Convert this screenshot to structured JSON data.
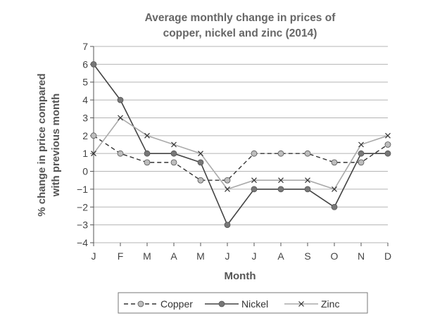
{
  "chart_data": {
    "type": "line",
    "title_lines": [
      "Average monthly change in prices of",
      "copper, nickel and zinc (2014)"
    ],
    "xlabel": "Month",
    "ylabel_lines": [
      "% change in price compared",
      "with previous month"
    ],
    "categories": [
      "J",
      "F",
      "M",
      "A",
      "M",
      "J",
      "J",
      "A",
      "S",
      "O",
      "N",
      "D"
    ],
    "ylim": [
      -4,
      7
    ],
    "yticks": [
      "7",
      "6",
      "5",
      "4",
      "3",
      "2",
      "1",
      "0",
      "−1",
      "−2",
      "−3",
      "−4"
    ],
    "grid": true,
    "legend_position": "bottom",
    "series": [
      {
        "name": "Copper",
        "values": [
          2,
          1,
          0.5,
          0.5,
          -0.5,
          -0.5,
          1,
          1,
          1,
          0.5,
          0.5,
          1.5
        ],
        "color": "#333333",
        "style": "dashed",
        "marker": "circle",
        "marker_fill": "#bdbdbd"
      },
      {
        "name": "Nickel",
        "values": [
          6,
          4,
          1,
          1,
          0.5,
          -3,
          -1,
          -1,
          -1,
          -2,
          1,
          1
        ],
        "color": "#444444",
        "style": "solid",
        "marker": "circle",
        "marker_fill": "#777777"
      },
      {
        "name": "Zinc",
        "values": [
          1,
          3,
          2,
          1.5,
          1,
          -1,
          -0.5,
          -0.5,
          -0.5,
          -1,
          1.5,
          2
        ],
        "color": "#aaaaaa",
        "style": "solid",
        "marker": "x",
        "marker_fill": "#333333"
      }
    ]
  }
}
